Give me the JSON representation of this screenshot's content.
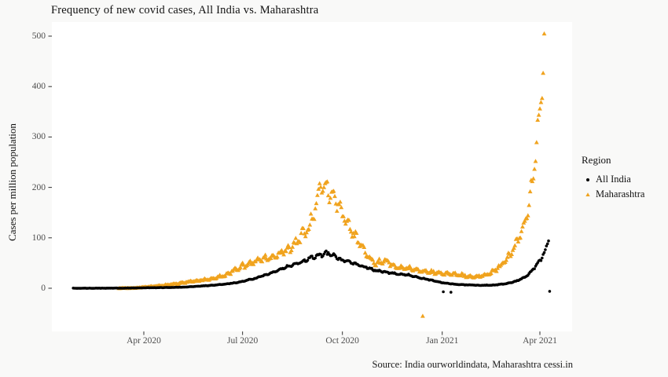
{
  "title": "Frequency of new covid cases, All India vs. Maharashtra",
  "caption": "Source: India ourworldindata, Maharashtra cessi.in",
  "y_axis": {
    "title": "Cases per million population",
    "ticks": [
      0,
      100,
      200,
      300,
      400,
      500
    ]
  },
  "x_axis": {
    "ticks": [
      {
        "label": "Apr 2020",
        "date": "2020-04-01"
      },
      {
        "label": "Jul 2020",
        "date": "2020-07-01"
      },
      {
        "label": "Oct 2020",
        "date": "2020-10-01"
      },
      {
        "label": "Jan 2021",
        "date": "2021-01-01"
      },
      {
        "label": "Apr 2021",
        "date": "2021-04-01"
      }
    ]
  },
  "legend": {
    "title": "Region",
    "items": [
      {
        "label": "All India",
        "marker": "dot",
        "color": "#000000"
      },
      {
        "label": "Maharashtra",
        "marker": "triangle",
        "color": "#F0A31E"
      }
    ]
  },
  "colors": {
    "background": "#f9f9f8",
    "panel": "#ffffff",
    "axis_text": "#4d4d4d",
    "tick_mark": "#333333",
    "all_india": "#000000",
    "maharashtra": "#F0A31E"
  },
  "chart_data": {
    "type": "scatter",
    "title": "Frequency of new covid cases, All India vs. Maharashtra",
    "xlabel": "",
    "ylabel": "Cases per million population",
    "x_unit": "date (daily observations)",
    "xlim": [
      "2020-01-26",
      "2021-04-24"
    ],
    "ylim": [
      -85,
      525
    ],
    "grid": false,
    "legend_title": "Region",
    "legend_position": "right",
    "x_tick_labels": [
      "Apr 2020",
      "Jul 2020",
      "Oct 2020",
      "Jan 2021",
      "Apr 2021"
    ],
    "y_tick_labels": [
      0,
      100,
      200,
      300,
      400,
      500
    ],
    "sampling_note": "daily scatter; values below are keypoints read from the plot (cases per million)",
    "series": [
      {
        "name": "All India",
        "marker": "dot",
        "color": "#000000",
        "keypoints": [
          [
            "2020-01-27",
            0
          ],
          [
            "2020-02-20",
            0.05
          ],
          [
            "2020-03-10",
            0.2
          ],
          [
            "2020-03-25",
            0.6
          ],
          [
            "2020-04-10",
            1.1
          ],
          [
            "2020-04-25",
            1.5
          ],
          [
            "2020-05-10",
            2.5
          ],
          [
            "2020-05-25",
            4.5
          ],
          [
            "2020-06-10",
            7
          ],
          [
            "2020-06-25",
            11
          ],
          [
            "2020-07-10",
            18
          ],
          [
            "2020-07-25",
            28
          ],
          [
            "2020-08-10",
            42
          ],
          [
            "2020-08-25",
            52
          ],
          [
            "2020-09-05",
            63
          ],
          [
            "2020-09-12",
            66
          ],
          [
            "2020-09-17",
            70
          ],
          [
            "2020-09-24",
            64
          ],
          [
            "2020-10-01",
            56
          ],
          [
            "2020-10-15",
            47
          ],
          [
            "2020-11-01",
            35
          ],
          [
            "2020-11-15",
            30
          ],
          [
            "2020-12-01",
            26
          ],
          [
            "2020-12-15",
            19
          ],
          [
            "2021-01-01",
            11
          ],
          [
            "2021-01-15",
            7.5
          ],
          [
            "2021-02-01",
            6
          ],
          [
            "2021-02-15",
            6
          ],
          [
            "2021-03-01",
            9
          ],
          [
            "2021-03-10",
            14
          ],
          [
            "2021-03-20",
            24
          ],
          [
            "2021-03-27",
            40
          ],
          [
            "2021-04-02",
            58
          ],
          [
            "2021-04-06",
            75
          ],
          [
            "2021-04-09",
            95
          ]
        ],
        "outliers": [
          [
            "2021-01-02",
            -7
          ],
          [
            "2021-01-09",
            -8
          ],
          [
            "2021-04-10",
            -6
          ]
        ]
      },
      {
        "name": "Maharashtra",
        "marker": "triangle",
        "color": "#F0A31E",
        "keypoints": [
          [
            "2020-03-09",
            0.2
          ],
          [
            "2020-03-25",
            1
          ],
          [
            "2020-04-05",
            3
          ],
          [
            "2020-04-20",
            6
          ],
          [
            "2020-05-01",
            9
          ],
          [
            "2020-05-15",
            14
          ],
          [
            "2020-06-01",
            18
          ],
          [
            "2020-06-15",
            26
          ],
          [
            "2020-07-01",
            45
          ],
          [
            "2020-07-15",
            55
          ],
          [
            "2020-08-01",
            65
          ],
          [
            "2020-08-15",
            82
          ],
          [
            "2020-09-01",
            122
          ],
          [
            "2020-09-06",
            160
          ],
          [
            "2020-09-11",
            208
          ],
          [
            "2020-09-16",
            200
          ],
          [
            "2020-09-22",
            185
          ],
          [
            "2020-09-28",
            160
          ],
          [
            "2020-10-04",
            135
          ],
          [
            "2020-10-10",
            110
          ],
          [
            "2020-10-17",
            88
          ],
          [
            "2020-10-25",
            62
          ],
          [
            "2020-11-01",
            50
          ],
          [
            "2020-11-10",
            55
          ],
          [
            "2020-11-18",
            42
          ],
          [
            "2020-12-01",
            40
          ],
          [
            "2020-12-15",
            34
          ],
          [
            "2021-01-01",
            30
          ],
          [
            "2021-01-15",
            27
          ],
          [
            "2021-02-01",
            23
          ],
          [
            "2021-02-10",
            26
          ],
          [
            "2021-02-20",
            38
          ],
          [
            "2021-03-01",
            56
          ],
          [
            "2021-03-08",
            80
          ],
          [
            "2021-03-15",
            112
          ],
          [
            "2021-03-21",
            155
          ],
          [
            "2021-03-26",
            235
          ],
          [
            "2021-03-30",
            300
          ],
          [
            "2021-04-02",
            400
          ],
          [
            "2021-04-04",
            460
          ],
          [
            "2021-04-05",
            500
          ]
        ],
        "outliers": [
          [
            "2020-12-14",
            -55
          ]
        ]
      }
    ]
  }
}
